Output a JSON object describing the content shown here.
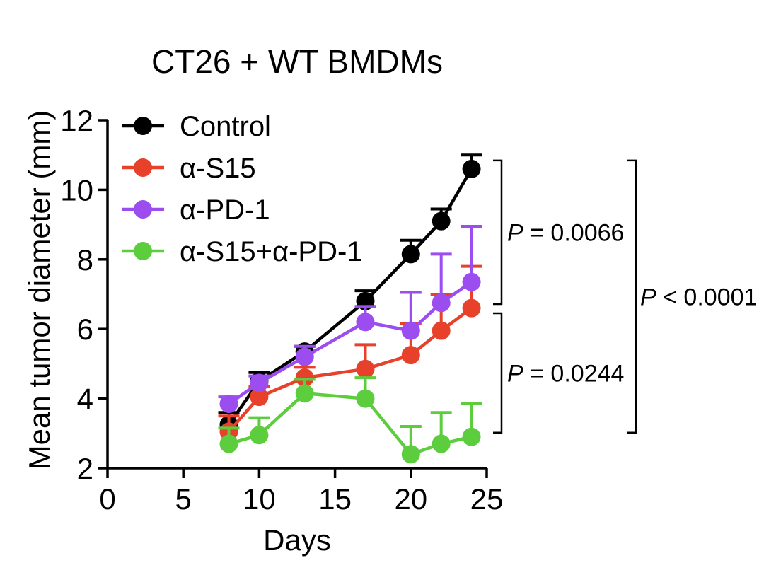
{
  "chart_data": {
    "type": "line",
    "title": "CT26 + WT BMDMs",
    "xlabel": "Days",
    "ylabel": "Mean tumor diameter (mm)",
    "xlim": [
      0,
      25
    ],
    "ylim": [
      2,
      12
    ],
    "xticks": [
      0,
      5,
      10,
      15,
      20,
      25
    ],
    "yticks": [
      2,
      4,
      6,
      8,
      10,
      12
    ],
    "grid": false,
    "legend_position": "top-left",
    "x": [
      8,
      10,
      13,
      17,
      20,
      22,
      24
    ],
    "series": [
      {
        "name": "Control",
        "color": "#000000",
        "values": [
          3.25,
          4.5,
          5.35,
          6.8,
          8.15,
          9.1,
          10.6
        ],
        "error": [
          0.35,
          0.25,
          0.15,
          0.3,
          0.4,
          0.35,
          0.4
        ]
      },
      {
        "name": "α-S15",
        "color": "#e8412b",
        "values": [
          3.05,
          4.05,
          4.6,
          4.85,
          5.25,
          5.95,
          6.6
        ],
        "error": [
          0.45,
          0.3,
          0.3,
          0.7,
          0.9,
          1.05,
          1.2
        ]
      },
      {
        "name": "α-PD-1",
        "color": "#9b4df0",
        "values": [
          3.85,
          4.45,
          5.2,
          6.2,
          5.95,
          6.75,
          7.35
        ],
        "error": [
          0.2,
          0.2,
          0.3,
          0.45,
          1.1,
          1.4,
          1.6
        ]
      },
      {
        "name": "α-S15+α-PD-1",
        "color": "#5ccd3c",
        "values": [
          2.7,
          2.95,
          4.15,
          4.0,
          2.4,
          2.7,
          2.9
        ],
        "error": [
          0.45,
          0.5,
          0.4,
          0.6,
          0.8,
          0.9,
          0.95
        ]
      }
    ],
    "annotations": [
      {
        "id": "p1",
        "label": "P",
        "value": " = 0.0066",
        "from_series": "Control",
        "to_series": "α-PD-1"
      },
      {
        "id": "p2",
        "label": "P",
        "value": " = 0.0244",
        "from_series": "α-PD-1",
        "to_series": "α-S15+α-PD-1"
      },
      {
        "id": "p3",
        "label": "P",
        "value": " < 0.0001",
        "from_series": "Control",
        "to_series": "α-S15+α-PD-1"
      }
    ]
  }
}
